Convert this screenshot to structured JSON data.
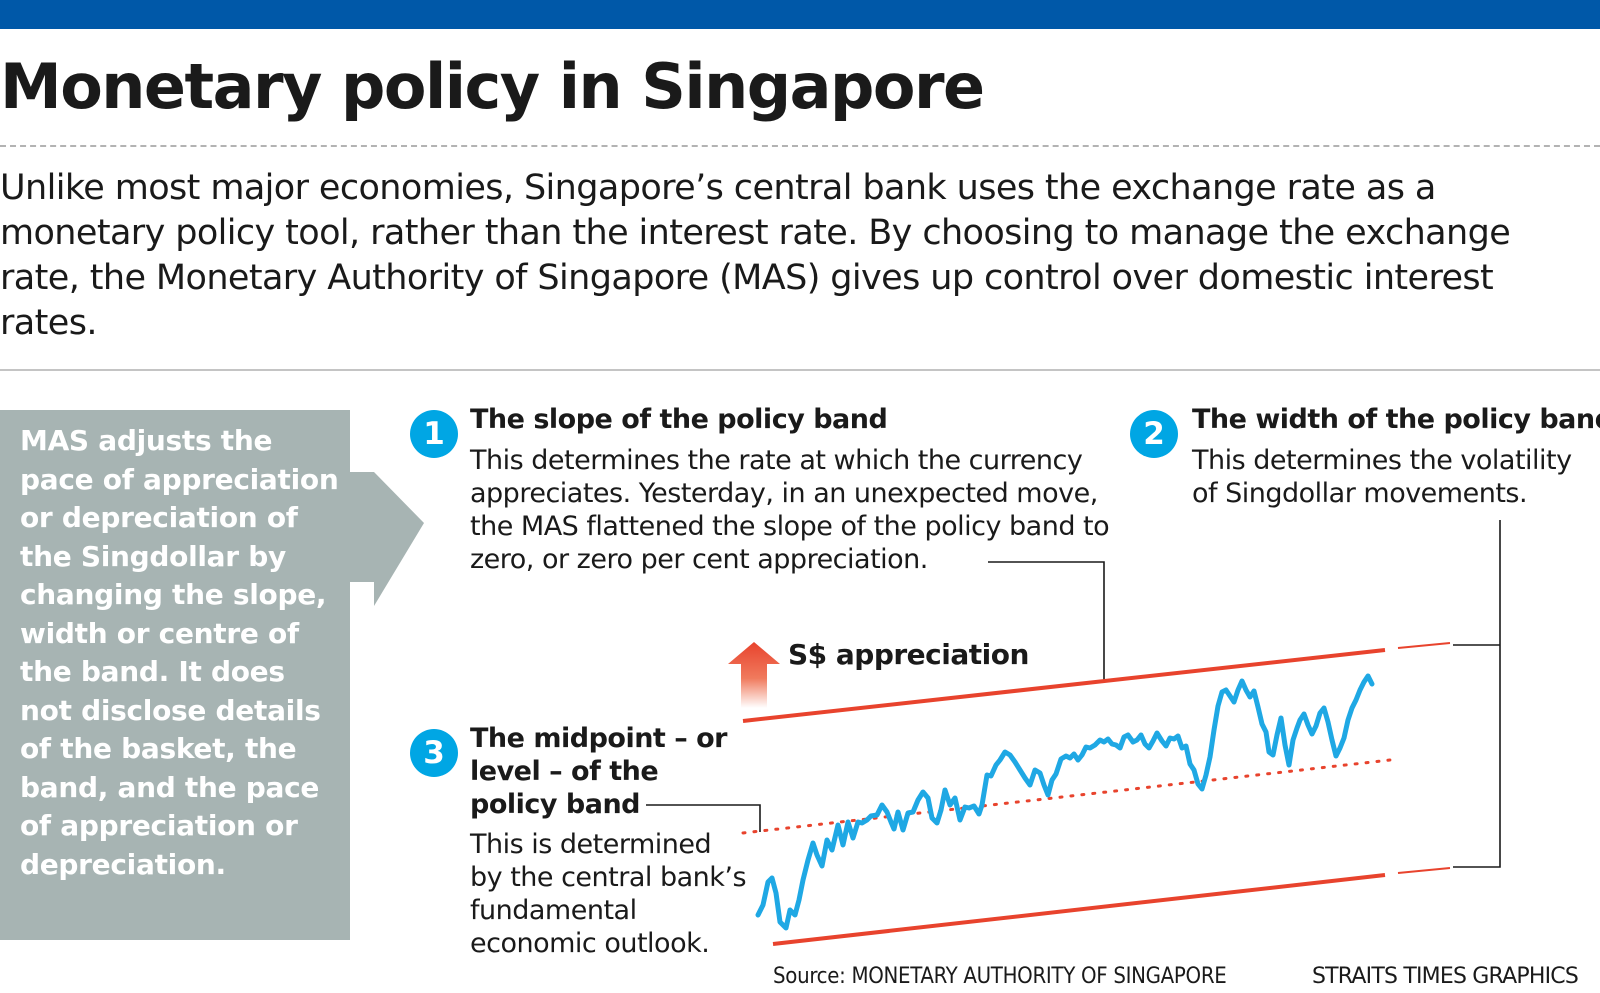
{
  "title": "Monetary policy in Singapore",
  "intro": "Unlike most major economies, Singapore’s central bank uses the exchange rate as a monetary policy tool, rather than the interest rate. By choosing to manage the exchange rate, the Monetary Authority of Singapore (MAS) gives up control over domestic interest rates.",
  "sidebar": {
    "text": "MAS adjusts the pace of appreciation or depreciation of the Singdollar by changing the slope, width or centre of the band. It does not disclose details of the basket, the band, and the pace of appreciation or depreciation."
  },
  "points": [
    {
      "number": "1",
      "heading": "The slope of the policy band",
      "body": "This determines the rate at which the currency appreciates. Yesterday, in an unexpected move, the MAS flattened the slope of the policy band to zero, or zero per cent appreciation."
    },
    {
      "number": "2",
      "heading": "The width of the policy band",
      "body": "This determines the volatility of Singdollar movements."
    },
    {
      "number": "3",
      "heading": "The midpoint – or level – of the policy band",
      "body": "This is determined by the central bank’s fundamental economic outlook."
    }
  ],
  "diagram": {
    "appreciation_label": "S$ appreciation",
    "colors": {
      "band": "#e8432d",
      "midpoint": "#e8432d",
      "exchange_rate": "#1fa8e4",
      "badge": "#00a6e4",
      "sidebar": "#a7b4b3",
      "top_bar": "#0058a8"
    },
    "icons": {
      "arrow": "up-arrow-icon",
      "sidebar_arrow": "right-arrow-icon"
    }
  },
  "footer": {
    "source": "Source: MONETARY AUTHORITY OF SINGAPORE",
    "credit": "STRAITS TIMES GRAPHICS"
  }
}
